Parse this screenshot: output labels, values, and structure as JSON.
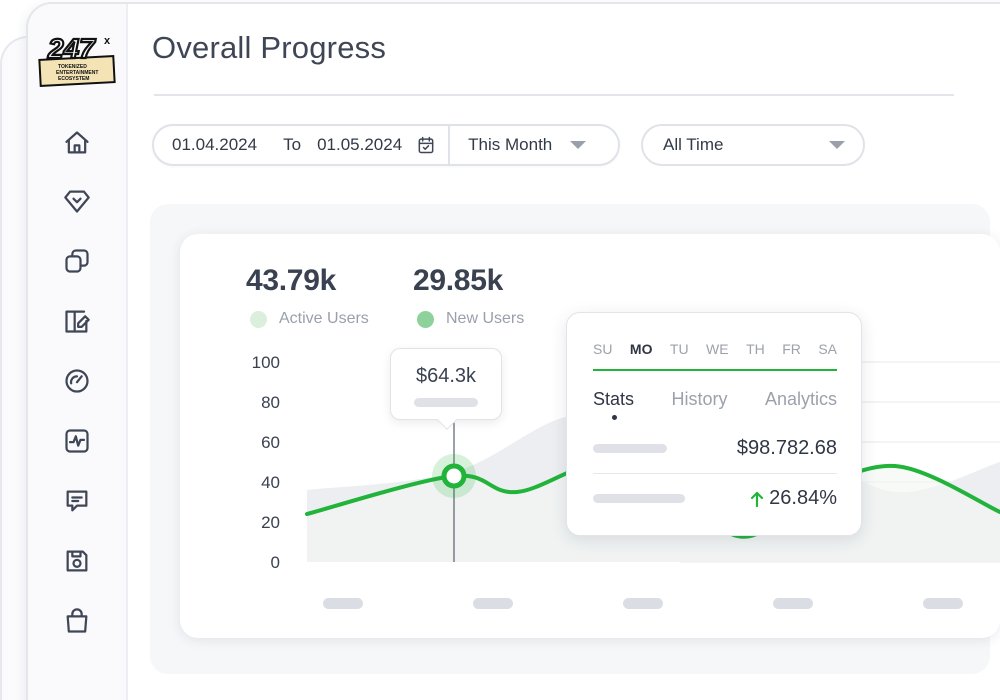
{
  "brand": {
    "logo_text": "247x",
    "logo_subtext": "TOKENIZED ENTERTAINMENT ECOSYSTEM"
  },
  "sidebar": {
    "items": [
      {
        "name": "home-icon"
      },
      {
        "name": "diamond-icon"
      },
      {
        "name": "copy-icon"
      },
      {
        "name": "book-edit-icon"
      },
      {
        "name": "gauge-icon"
      },
      {
        "name": "activity-icon"
      },
      {
        "name": "message-icon"
      },
      {
        "name": "save-icon"
      },
      {
        "name": "shopping-bag-icon"
      }
    ]
  },
  "header": {
    "title": "Overall Progress"
  },
  "filters": {
    "date_from": "01.04.2024",
    "to_label": "To",
    "date_to": "01.05.2024",
    "range": "This Month",
    "period": "All Time"
  },
  "stats": {
    "active_users_value": "43.79k",
    "active_users_label": "Active Users",
    "new_users_value": "29.85k",
    "new_users_label": "New Users",
    "active_color": "#dcefdc",
    "new_color": "#8fd19a"
  },
  "tooltip": {
    "value": "$64.3k"
  },
  "popover": {
    "days": [
      "SU",
      "MO",
      "TU",
      "WE",
      "TH",
      "FR",
      "SA"
    ],
    "active_day": "MO",
    "tabs": [
      "Stats",
      "History",
      "Analytics"
    ],
    "active_tab": "Stats",
    "amount": "$98.782.68",
    "percent": "26.84%"
  },
  "chart_data": {
    "type": "line",
    "yticks": [
      "100",
      "80",
      "60",
      "40",
      "20",
      "0"
    ],
    "ylim": [
      0,
      100
    ],
    "series": [
      {
        "color": "#22b33a",
        "points": [
          [
            0,
            24
          ],
          [
            14,
            43
          ],
          [
            20,
            35
          ],
          [
            30,
            50
          ],
          [
            41,
            13
          ],
          [
            47,
            32
          ],
          [
            56,
            48
          ],
          [
            66,
            25
          ]
        ]
      }
    ],
    "area_series": {
      "color": "#eceef1",
      "points": [
        [
          0,
          36
        ],
        [
          14,
          45
        ],
        [
          25,
          73
        ],
        [
          35,
          68
        ],
        [
          46,
          60
        ],
        [
          56,
          35
        ],
        [
          66,
          50
        ]
      ]
    },
    "highlight_index": 1,
    "accent_color": "#22b33a"
  }
}
